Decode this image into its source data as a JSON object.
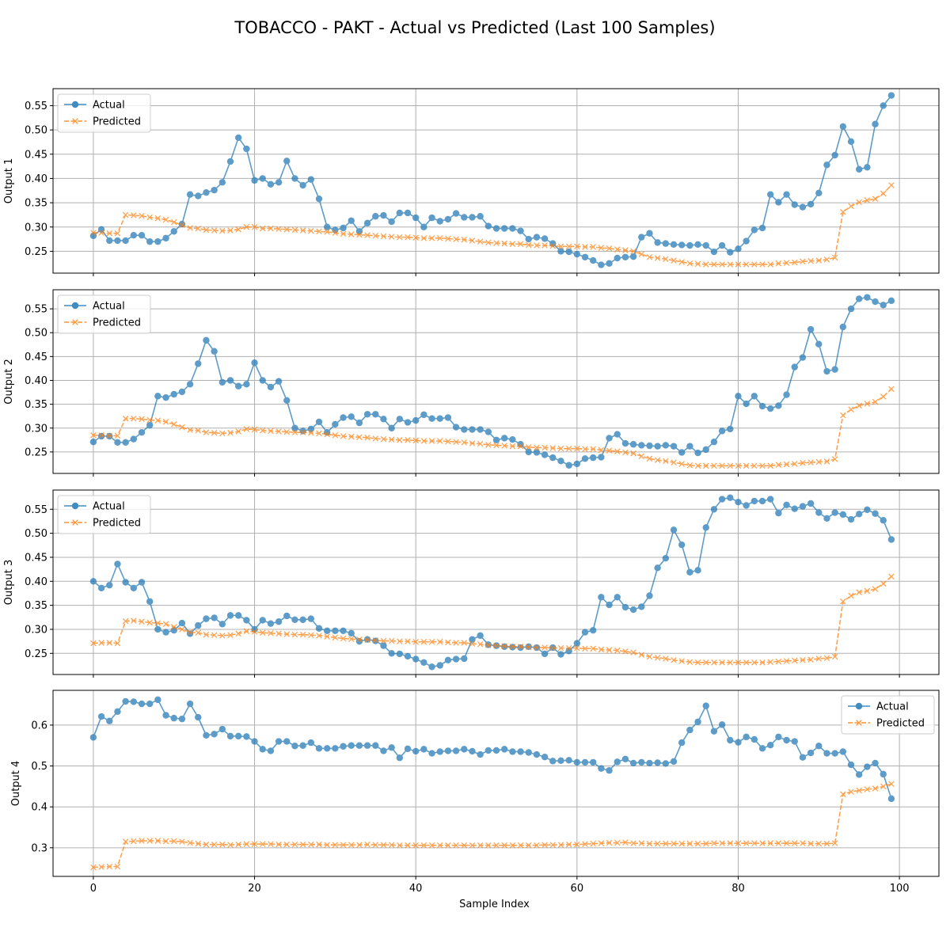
{
  "figure": {
    "title": "TOBACCO - PAKT - Actual vs Predicted (Last 100 Samples)",
    "xlabel": "Sample Index",
    "colors": {
      "actual": "#1f77b4",
      "predicted": "#ff7f0e"
    }
  },
  "chart_data": [
    {
      "type": "line",
      "ylabel": "Output 1",
      "xlim": [
        -5,
        104.9
      ],
      "ylim": [
        0.205,
        0.585
      ],
      "x_ticks": [
        0,
        20,
        40,
        60,
        80,
        100
      ],
      "y_ticks": [
        0.25,
        0.3,
        0.35,
        0.4,
        0.45,
        0.5,
        0.55
      ],
      "x_tick_labels": [
        "0",
        "20",
        "40",
        "60",
        "80",
        "100"
      ],
      "y_tick_labels": [
        "0.25",
        "0.30",
        "0.35",
        "0.40",
        "0.45",
        "0.50",
        "0.55"
      ],
      "legend_position": "upper-left",
      "grid": true,
      "series": [
        {
          "name": "Actual",
          "marker": "circle",
          "linestyle": "solid",
          "values": [
            0.282,
            0.295,
            0.272,
            0.272,
            0.272,
            0.283,
            0.283,
            0.27,
            0.27,
            0.277,
            0.291,
            0.306,
            0.367,
            0.364,
            0.371,
            0.376,
            0.392,
            0.435,
            0.484,
            0.461,
            0.396,
            0.4,
            0.388,
            0.392,
            0.436,
            0.4,
            0.386,
            0.398,
            0.358,
            0.3,
            0.294,
            0.298,
            0.313,
            0.291,
            0.308,
            0.322,
            0.324,
            0.311,
            0.329,
            0.329,
            0.319,
            0.3,
            0.319,
            0.312,
            0.316,
            0.328,
            0.32,
            0.32,
            0.322,
            0.302,
            0.297,
            0.297,
            0.297,
            0.292,
            0.275,
            0.279,
            0.276,
            0.266,
            0.25,
            0.249,
            0.244,
            0.238,
            0.231,
            0.222,
            0.225,
            0.236,
            0.238,
            0.239,
            0.279,
            0.287,
            0.268,
            0.266,
            0.264,
            0.263,
            0.262,
            0.264,
            0.262,
            0.249,
            0.262,
            0.248,
            0.255,
            0.271,
            0.294,
            0.298,
            0.367,
            0.351,
            0.367,
            0.346,
            0.341,
            0.347,
            0.37,
            0.428,
            0.448,
            0.507,
            0.476,
            0.419,
            0.423,
            0.512,
            0.55,
            0.571
          ]
        },
        {
          "name": "Predicted",
          "marker": "x",
          "linestyle": "dashed",
          "values": [
            0.288,
            0.288,
            0.287,
            0.287,
            0.325,
            0.324,
            0.323,
            0.32,
            0.318,
            0.315,
            0.31,
            0.304,
            0.298,
            0.297,
            0.294,
            0.293,
            0.292,
            0.293,
            0.295,
            0.3,
            0.3,
            0.297,
            0.297,
            0.296,
            0.295,
            0.294,
            0.293,
            0.292,
            0.291,
            0.29,
            0.288,
            0.286,
            0.285,
            0.284,
            0.283,
            0.282,
            0.281,
            0.28,
            0.279,
            0.279,
            0.278,
            0.277,
            0.277,
            0.277,
            0.276,
            0.275,
            0.274,
            0.272,
            0.27,
            0.268,
            0.267,
            0.266,
            0.265,
            0.265,
            0.263,
            0.262,
            0.262,
            0.261,
            0.26,
            0.26,
            0.26,
            0.259,
            0.259,
            0.257,
            0.256,
            0.254,
            0.252,
            0.25,
            0.244,
            0.238,
            0.236,
            0.234,
            0.231,
            0.228,
            0.225,
            0.224,
            0.223,
            0.223,
            0.223,
            0.223,
            0.223,
            0.223,
            0.223,
            0.223,
            0.223,
            0.225,
            0.226,
            0.227,
            0.229,
            0.23,
            0.231,
            0.233,
            0.237,
            0.331,
            0.343,
            0.351,
            0.355,
            0.358,
            0.369,
            0.386
          ]
        }
      ]
    },
    {
      "type": "line",
      "ylabel": "Output 2",
      "xlim": [
        -5,
        104.9
      ],
      "ylim": [
        0.205,
        0.59
      ],
      "x_ticks": [
        0,
        20,
        40,
        60,
        80,
        100
      ],
      "y_ticks": [
        0.25,
        0.3,
        0.35,
        0.4,
        0.45,
        0.5,
        0.55
      ],
      "x_tick_labels": [
        "0",
        "20",
        "40",
        "60",
        "80",
        "100"
      ],
      "y_tick_labels": [
        "0.25",
        "0.30",
        "0.35",
        "0.40",
        "0.45",
        "0.50",
        "0.55"
      ],
      "legend_position": "upper-left",
      "grid": true,
      "series": [
        {
          "name": "Actual",
          "marker": "circle",
          "linestyle": "solid",
          "values": [
            0.271,
            0.283,
            0.283,
            0.27,
            0.27,
            0.277,
            0.291,
            0.306,
            0.367,
            0.364,
            0.371,
            0.376,
            0.392,
            0.435,
            0.484,
            0.461,
            0.396,
            0.4,
            0.388,
            0.392,
            0.437,
            0.4,
            0.386,
            0.398,
            0.358,
            0.3,
            0.294,
            0.298,
            0.313,
            0.291,
            0.308,
            0.322,
            0.324,
            0.311,
            0.329,
            0.329,
            0.319,
            0.3,
            0.319,
            0.312,
            0.316,
            0.328,
            0.32,
            0.32,
            0.322,
            0.302,
            0.297,
            0.297,
            0.297,
            0.292,
            0.275,
            0.279,
            0.276,
            0.266,
            0.25,
            0.249,
            0.244,
            0.238,
            0.231,
            0.222,
            0.225,
            0.236,
            0.238,
            0.239,
            0.279,
            0.287,
            0.268,
            0.266,
            0.264,
            0.263,
            0.262,
            0.264,
            0.262,
            0.249,
            0.262,
            0.248,
            0.255,
            0.271,
            0.294,
            0.298,
            0.367,
            0.351,
            0.367,
            0.346,
            0.341,
            0.347,
            0.37,
            0.428,
            0.448,
            0.507,
            0.476,
            0.419,
            0.423,
            0.512,
            0.55,
            0.571,
            0.574,
            0.565,
            0.558,
            0.567
          ]
        },
        {
          "name": "Predicted",
          "marker": "x",
          "linestyle": "dashed",
          "values": [
            0.285,
            0.285,
            0.284,
            0.284,
            0.32,
            0.32,
            0.319,
            0.317,
            0.316,
            0.313,
            0.308,
            0.302,
            0.296,
            0.295,
            0.291,
            0.29,
            0.289,
            0.29,
            0.293,
            0.298,
            0.297,
            0.295,
            0.294,
            0.293,
            0.292,
            0.291,
            0.291,
            0.29,
            0.289,
            0.287,
            0.285,
            0.283,
            0.282,
            0.281,
            0.28,
            0.278,
            0.277,
            0.276,
            0.275,
            0.275,
            0.274,
            0.273,
            0.273,
            0.273,
            0.272,
            0.271,
            0.27,
            0.268,
            0.267,
            0.265,
            0.264,
            0.263,
            0.262,
            0.262,
            0.26,
            0.259,
            0.259,
            0.258,
            0.257,
            0.257,
            0.257,
            0.256,
            0.256,
            0.254,
            0.253,
            0.251,
            0.249,
            0.247,
            0.241,
            0.236,
            0.233,
            0.231,
            0.228,
            0.225,
            0.222,
            0.221,
            0.221,
            0.221,
            0.221,
            0.221,
            0.221,
            0.221,
            0.221,
            0.221,
            0.221,
            0.223,
            0.224,
            0.225,
            0.227,
            0.228,
            0.229,
            0.23,
            0.235,
            0.327,
            0.339,
            0.347,
            0.351,
            0.355,
            0.366,
            0.382
          ]
        }
      ]
    },
    {
      "type": "line",
      "ylabel": "Output 3",
      "xlim": [
        -5,
        104.9
      ],
      "ylim": [
        0.206,
        0.59
      ],
      "x_ticks": [
        0,
        20,
        40,
        60,
        80,
        100
      ],
      "y_ticks": [
        0.25,
        0.3,
        0.35,
        0.4,
        0.45,
        0.5,
        0.55
      ],
      "x_tick_labels": [
        "0",
        "20",
        "40",
        "60",
        "80",
        "100"
      ],
      "y_tick_labels": [
        "0.25",
        "0.30",
        "0.35",
        "0.40",
        "0.45",
        "0.50",
        "0.55"
      ],
      "legend_position": "upper-left",
      "grid": true,
      "series": [
        {
          "name": "Actual",
          "marker": "circle",
          "linestyle": "solid",
          "values": [
            0.4,
            0.386,
            0.392,
            0.436,
            0.398,
            0.386,
            0.398,
            0.358,
            0.3,
            0.294,
            0.298,
            0.313,
            0.291,
            0.308,
            0.322,
            0.324,
            0.311,
            0.329,
            0.329,
            0.319,
            0.3,
            0.319,
            0.312,
            0.316,
            0.328,
            0.32,
            0.32,
            0.322,
            0.302,
            0.297,
            0.297,
            0.297,
            0.292,
            0.275,
            0.279,
            0.276,
            0.266,
            0.25,
            0.249,
            0.244,
            0.238,
            0.231,
            0.222,
            0.225,
            0.236,
            0.238,
            0.239,
            0.279,
            0.287,
            0.268,
            0.266,
            0.264,
            0.263,
            0.262,
            0.264,
            0.262,
            0.249,
            0.262,
            0.248,
            0.255,
            0.271,
            0.294,
            0.298,
            0.367,
            0.351,
            0.367,
            0.346,
            0.341,
            0.347,
            0.37,
            0.428,
            0.448,
            0.507,
            0.476,
            0.419,
            0.423,
            0.512,
            0.55,
            0.571,
            0.574,
            0.565,
            0.558,
            0.567,
            0.567,
            0.571,
            0.542,
            0.559,
            0.551,
            0.556,
            0.562,
            0.543,
            0.531,
            0.543,
            0.539,
            0.529,
            0.54,
            0.549,
            0.541,
            0.527,
            0.487
          ]
        },
        {
          "name": "Predicted",
          "marker": "x",
          "linestyle": "dashed",
          "values": [
            0.271,
            0.272,
            0.272,
            0.271,
            0.317,
            0.318,
            0.316,
            0.314,
            0.313,
            0.311,
            0.305,
            0.3,
            0.294,
            0.293,
            0.289,
            0.288,
            0.287,
            0.288,
            0.291,
            0.296,
            0.295,
            0.293,
            0.292,
            0.291,
            0.29,
            0.289,
            0.289,
            0.288,
            0.287,
            0.285,
            0.283,
            0.281,
            0.28,
            0.279,
            0.278,
            0.277,
            0.276,
            0.276,
            0.275,
            0.275,
            0.274,
            0.274,
            0.274,
            0.274,
            0.273,
            0.272,
            0.272,
            0.27,
            0.269,
            0.267,
            0.266,
            0.265,
            0.264,
            0.264,
            0.263,
            0.262,
            0.262,
            0.261,
            0.261,
            0.261,
            0.261,
            0.26,
            0.26,
            0.258,
            0.257,
            0.256,
            0.254,
            0.252,
            0.247,
            0.243,
            0.241,
            0.239,
            0.236,
            0.234,
            0.232,
            0.231,
            0.231,
            0.231,
            0.231,
            0.231,
            0.231,
            0.231,
            0.231,
            0.231,
            0.232,
            0.233,
            0.234,
            0.235,
            0.236,
            0.237,
            0.239,
            0.24,
            0.243,
            0.358,
            0.37,
            0.377,
            0.38,
            0.384,
            0.395,
            0.41
          ]
        }
      ]
    },
    {
      "type": "line",
      "ylabel": "Output 4",
      "xlim": [
        -5,
        104.9
      ],
      "ylim": [
        0.23,
        0.685
      ],
      "x_ticks": [
        0,
        20,
        40,
        60,
        80,
        100
      ],
      "y_ticks": [
        0.3,
        0.4,
        0.5,
        0.6
      ],
      "x_tick_labels": [
        "0",
        "20",
        "40",
        "60",
        "80",
        "100"
      ],
      "y_tick_labels": [
        "0.3",
        "0.4",
        "0.5",
        "0.6"
      ],
      "legend_position": "upper-right",
      "grid": true,
      "series": [
        {
          "name": "Actual",
          "marker": "circle",
          "linestyle": "solid",
          "values": [
            0.57,
            0.621,
            0.61,
            0.633,
            0.658,
            0.657,
            0.652,
            0.652,
            0.662,
            0.624,
            0.617,
            0.615,
            0.652,
            0.619,
            0.575,
            0.578,
            0.59,
            0.573,
            0.573,
            0.572,
            0.56,
            0.541,
            0.537,
            0.56,
            0.56,
            0.549,
            0.55,
            0.557,
            0.543,
            0.543,
            0.543,
            0.548,
            0.55,
            0.55,
            0.55,
            0.55,
            0.537,
            0.545,
            0.52,
            0.542,
            0.536,
            0.541,
            0.531,
            0.535,
            0.537,
            0.537,
            0.541,
            0.536,
            0.528,
            0.538,
            0.538,
            0.541,
            0.535,
            0.535,
            0.533,
            0.528,
            0.522,
            0.512,
            0.513,
            0.514,
            0.509,
            0.509,
            0.509,
            0.494,
            0.489,
            0.51,
            0.517,
            0.507,
            0.509,
            0.507,
            0.508,
            0.506,
            0.511,
            0.557,
            0.588,
            0.608,
            0.647,
            0.585,
            0.601,
            0.563,
            0.558,
            0.571,
            0.565,
            0.543,
            0.551,
            0.571,
            0.563,
            0.56,
            0.521,
            0.532,
            0.549,
            0.531,
            0.531,
            0.535,
            0.503,
            0.479,
            0.498,
            0.507,
            0.48,
            0.42
          ]
        },
        {
          "name": "Predicted",
          "marker": "x",
          "linestyle": "dashed",
          "values": [
            0.252,
            0.253,
            0.254,
            0.254,
            0.315,
            0.316,
            0.317,
            0.317,
            0.317,
            0.316,
            0.316,
            0.315,
            0.312,
            0.31,
            0.308,
            0.308,
            0.308,
            0.307,
            0.308,
            0.309,
            0.309,
            0.309,
            0.309,
            0.308,
            0.308,
            0.308,
            0.308,
            0.308,
            0.308,
            0.307,
            0.307,
            0.307,
            0.307,
            0.307,
            0.308,
            0.307,
            0.307,
            0.307,
            0.306,
            0.306,
            0.306,
            0.306,
            0.306,
            0.306,
            0.306,
            0.306,
            0.306,
            0.306,
            0.306,
            0.306,
            0.306,
            0.306,
            0.306,
            0.306,
            0.306,
            0.306,
            0.307,
            0.307,
            0.307,
            0.308,
            0.308,
            0.309,
            0.31,
            0.311,
            0.312,
            0.312,
            0.313,
            0.311,
            0.311,
            0.31,
            0.31,
            0.31,
            0.31,
            0.31,
            0.31,
            0.31,
            0.31,
            0.311,
            0.311,
            0.311,
            0.311,
            0.311,
            0.311,
            0.311,
            0.311,
            0.311,
            0.311,
            0.311,
            0.311,
            0.31,
            0.31,
            0.31,
            0.311,
            0.431,
            0.437,
            0.44,
            0.443,
            0.445,
            0.45,
            0.456
          ]
        }
      ]
    }
  ]
}
